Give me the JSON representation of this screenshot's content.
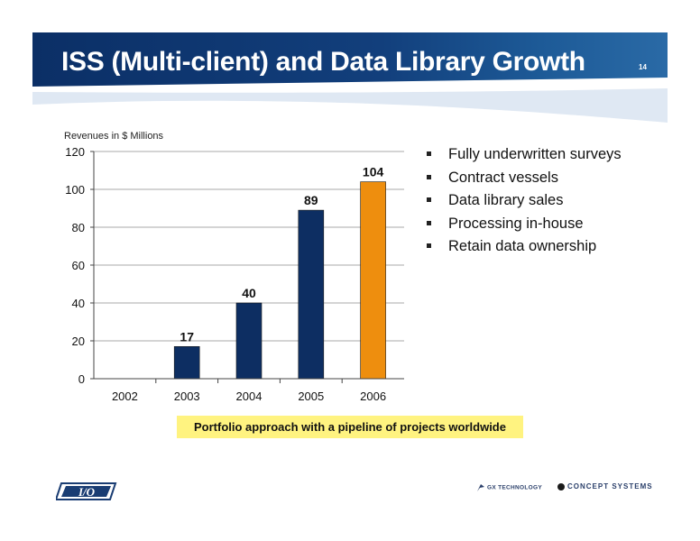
{
  "slide": {
    "title": "ISS (Multi-client) and Data Library Growth",
    "page_number": "14"
  },
  "chart_data": {
    "type": "bar",
    "title": "",
    "ylabel": "Revenues in $ Millions",
    "xlabel": "",
    "categories": [
      "2002",
      "2003",
      "2004",
      "2005",
      "2006"
    ],
    "values": [
      0,
      17,
      40,
      89,
      104
    ],
    "data_labels": [
      "",
      "17",
      "40",
      "89",
      "104"
    ],
    "ylim": [
      0,
      120
    ],
    "yticks": [
      "0",
      "20",
      "40",
      "60",
      "80",
      "100",
      "120"
    ],
    "grid": true,
    "bar_colors": [
      "#0d2e62",
      "#0d2e62",
      "#0d2e62",
      "#0d2e62",
      "#ee8e0e"
    ]
  },
  "bullets": [
    "Fully underwritten surveys",
    "Contract vessels",
    "Data library sales",
    "Processing in-house",
    "Retain data ownership"
  ],
  "banner": {
    "text": "Portfolio approach with a pipeline of projects worldwide",
    "color": "#fff380"
  },
  "footer": {
    "logo_icon": "io-logo-icon",
    "gx_label": "GX TECHNOLOGY",
    "cs_label": "CONCEPT SYSTEMS"
  },
  "colors": {
    "header": "#0b2f66",
    "bar_primary": "#0d2e62",
    "bar_highlight": "#ee8e0e"
  }
}
